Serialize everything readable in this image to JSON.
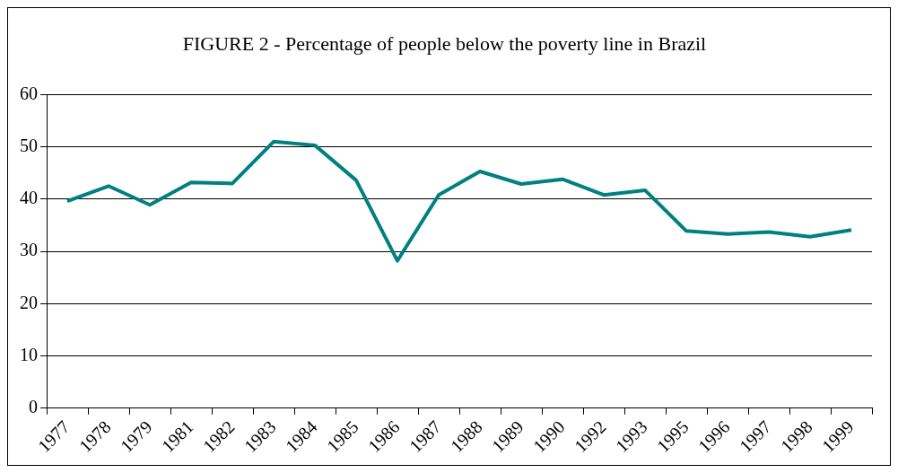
{
  "chart_data": {
    "type": "line",
    "title": "FIGURE 2 - Percentage of people below the poverty line in Brazil",
    "categories": [
      "1977",
      "1978",
      "1979",
      "1981",
      "1982",
      "1983",
      "1984",
      "1985",
      "1986",
      "1987",
      "1988",
      "1989",
      "1990",
      "1992",
      "1993",
      "1995",
      "1996",
      "1997",
      "1998",
      "1999"
    ],
    "series": [
      {
        "color": "#008080",
        "values": [
          39.6,
          42.5,
          38.9,
          43.2,
          43.0,
          51.0,
          50.3,
          43.6,
          28.2,
          40.8,
          45.3,
          42.9,
          43.8,
          40.8,
          41.7,
          33.9,
          33.3,
          33.7,
          32.8,
          34.1
        ]
      }
    ],
    "ylim": [
      0,
      60
    ],
    "yticks": [
      0,
      10,
      20,
      30,
      40,
      50,
      60
    ],
    "grid": "y",
    "legend": false,
    "marker": "none",
    "line_style": "solid"
  }
}
